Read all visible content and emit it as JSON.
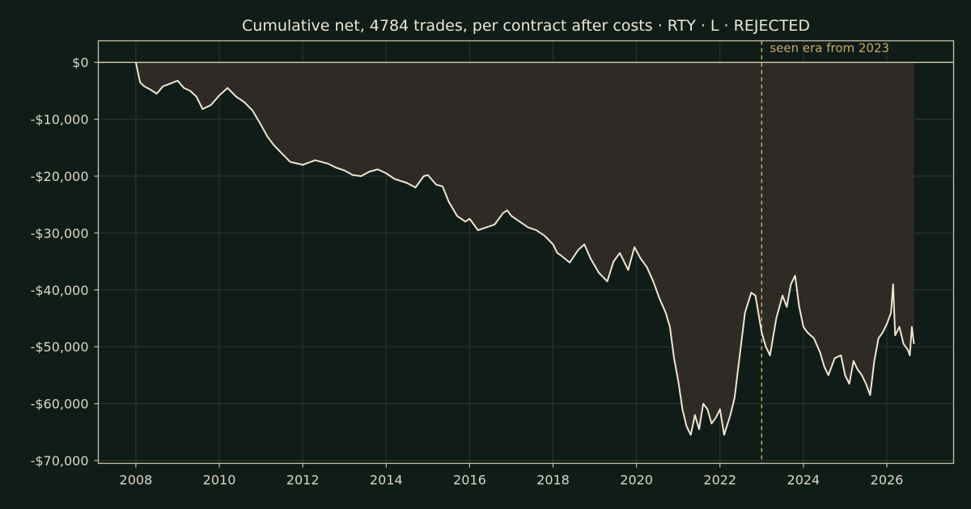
{
  "colors": {
    "background": "#101c17",
    "axes_frame": "#c9c3ad",
    "text": "#dcd6c6",
    "title_text": "#ece6d6",
    "grid": "#2b3a33",
    "line": "#efe6d2",
    "fill": "#2e2b26",
    "era_line": "#c9a86a",
    "era_text": "#c9a86a"
  },
  "chart_data": {
    "type": "area",
    "title": "Cumulative net, 4784 trades, per contract after costs  ·  RTY · L · REJECTED",
    "xlabel": "",
    "ylabel": "",
    "xlim": [
      2007.1,
      2027.6
    ],
    "ylim": [
      -70500,
      3800
    ],
    "grid": true,
    "fill_to_zero": true,
    "x_ticks": [
      2008,
      2010,
      2012,
      2014,
      2016,
      2018,
      2020,
      2022,
      2024,
      2026
    ],
    "x_tick_labels": [
      "2008",
      "2010",
      "2012",
      "2014",
      "2016",
      "2018",
      "2020",
      "2022",
      "2024",
      "2026"
    ],
    "y_ticks": [
      0,
      -10000,
      -20000,
      -30000,
      -40000,
      -50000,
      -60000,
      -70000
    ],
    "y_tick_labels": [
      "$0",
      "-$10,000",
      "-$20,000",
      "-$30,000",
      "-$40,000",
      "-$50,000",
      "-$60,000",
      "-$70,000"
    ],
    "annotations": [
      {
        "type": "vline",
        "x": 2023.0,
        "text": "seen era from 2023"
      }
    ],
    "series": [
      {
        "x": [
          2008.0,
          2008.1,
          2008.2,
          2008.35,
          2008.5,
          2008.65,
          2008.8,
          2009.0,
          2009.15,
          2009.3,
          2009.45,
          2009.6,
          2009.8,
          2010.0,
          2010.2,
          2010.4,
          2010.6,
          2010.8,
          2011.0,
          2011.15,
          2011.3,
          2011.5,
          2011.7,
          2012.0,
          2012.3,
          2012.6,
          2012.8,
          2013.0,
          2013.2,
          2013.4,
          2013.6,
          2013.8,
          2014.0,
          2014.2,
          2014.5,
          2014.7,
          2014.9,
          2015.0,
          2015.2,
          2015.35,
          2015.5,
          2015.7,
          2015.9,
          2016.0,
          2016.2,
          2016.4,
          2016.6,
          2016.8,
          2016.9,
          2017.0,
          2017.2,
          2017.4,
          2017.6,
          2017.8,
          2018.0,
          2018.1,
          2018.2,
          2018.4,
          2018.6,
          2018.75,
          2018.9,
          2019.1,
          2019.3,
          2019.45,
          2019.6,
          2019.8,
          2019.95,
          2020.1,
          2020.25,
          2020.4,
          2020.55,
          2020.7,
          2020.8,
          2020.9,
          2021.0,
          2021.1,
          2021.2,
          2021.3,
          2021.4,
          2021.5,
          2021.6,
          2021.7,
          2021.8,
          2021.9,
          2022.0,
          2022.1,
          2022.25,
          2022.35,
          2022.5,
          2022.6,
          2022.75,
          2022.85,
          2023.0,
          2023.1,
          2023.2,
          2023.35,
          2023.5,
          2023.6,
          2023.7,
          2023.8,
          2023.9,
          2024.0,
          2024.1,
          2024.25,
          2024.4,
          2024.5,
          2024.6,
          2024.75,
          2024.9,
          2025.0,
          2025.1,
          2025.2,
          2025.3,
          2025.4,
          2025.5,
          2025.6,
          2025.7,
          2025.8,
          2025.9,
          2026.0,
          2026.1,
          2026.15,
          2026.2,
          2026.3,
          2026.4,
          2026.5,
          2026.55,
          2026.6,
          2026.65
        ],
        "values": [
          0,
          -3500,
          -4200,
          -4800,
          -5500,
          -4200,
          -3800,
          -3200,
          -4500,
          -5000,
          -6000,
          -8200,
          -7500,
          -5800,
          -4500,
          -6000,
          -7000,
          -8500,
          -11000,
          -13000,
          -14500,
          -16000,
          -17500,
          -18000,
          -17200,
          -17800,
          -18500,
          -19000,
          -19800,
          -20000,
          -19200,
          -18800,
          -19500,
          -20500,
          -21200,
          -22000,
          -20000,
          -19800,
          -21500,
          -21800,
          -24500,
          -27000,
          -28000,
          -27500,
          -29500,
          -29000,
          -28500,
          -26500,
          -26000,
          -27000,
          -28000,
          -29000,
          -29500,
          -30500,
          -32000,
          -33500,
          -34000,
          -35200,
          -33000,
          -32000,
          -34500,
          -37000,
          -38500,
          -35000,
          -33500,
          -36500,
          -32500,
          -34500,
          -36000,
          -38500,
          -41500,
          -44000,
          -46500,
          -52000,
          -56000,
          -61000,
          -64000,
          -65500,
          -62000,
          -64500,
          -60000,
          -61000,
          -63500,
          -62500,
          -61000,
          -65500,
          -62000,
          -59000,
          -50000,
          -44000,
          -40500,
          -41000,
          -47500,
          -50000,
          -51500,
          -45000,
          -41000,
          -43000,
          -39000,
          -37500,
          -43000,
          -46500,
          -47500,
          -48500,
          -51000,
          -53500,
          -55000,
          -52000,
          -51500,
          -55000,
          -56500,
          -52500,
          -54000,
          -55000,
          -56500,
          -58500,
          -52500,
          -48500,
          -47500,
          -46000,
          -44000,
          -39000,
          -48000,
          -46500,
          -49500,
          -50500,
          -51500,
          -46500,
          -49500
        ]
      }
    ]
  }
}
